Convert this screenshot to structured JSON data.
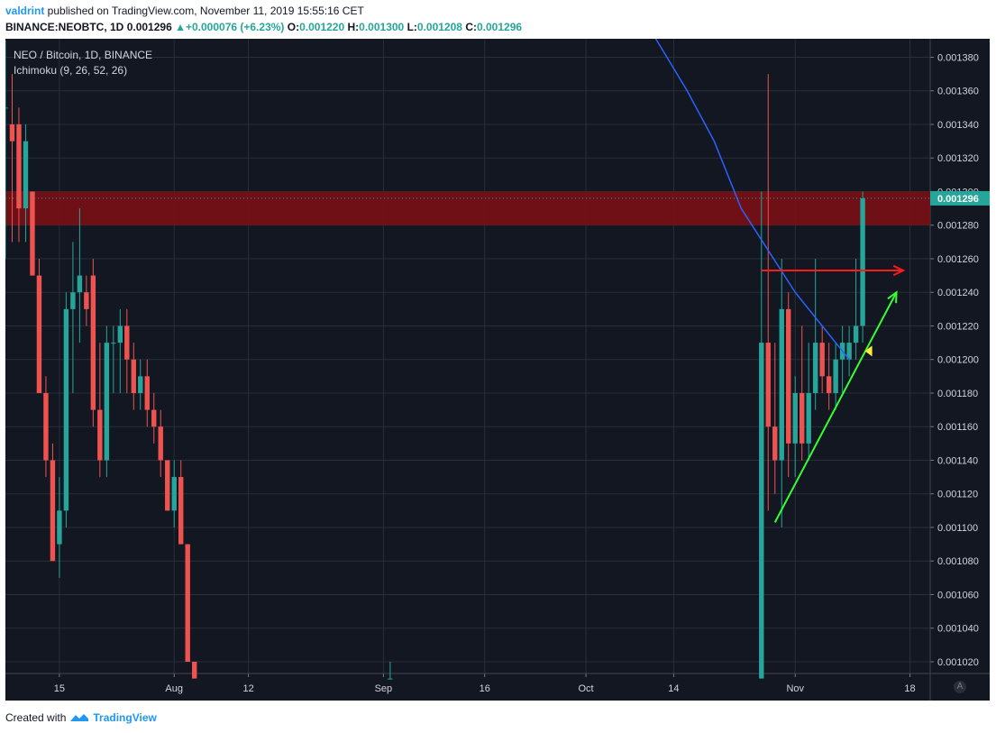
{
  "header": {
    "author": "valdrint",
    "published_text": " published on TradingView.com, November 11, 2019 15:55:16 CET",
    "symbol": "BINANCE:NEOBTC, 1D",
    "price": "0.001296",
    "change": "+0.000076 (+6.23%)",
    "o_label": "O:",
    "o_value": "0.001220",
    "h_label": "H:",
    "h_value": "0.001300",
    "l_label": "L:",
    "l_value": "0.001208",
    "c_label": "C:",
    "c_value": "0.001296"
  },
  "legend": {
    "title": "NEO / Bitcoin, 1D, BINANCE",
    "indicator": "Ichimoku (9, 26, 52, 26)"
  },
  "footer": {
    "created_with": "Created with",
    "brand": "TradingView"
  },
  "auto_button": "A",
  "colors": {
    "background": "#131722",
    "grid": "#2a2e39",
    "up": "#26a69a",
    "down": "#ef5350",
    "resistance_zone": "#7a1015",
    "ma_line": "#2962ff",
    "arrow_red": "#ff1a1a",
    "arrow_green": "#33ff33",
    "marker_yellow": "#ffeb3b",
    "price_label": "#26a69a"
  },
  "chart_data": {
    "type": "candlestick",
    "title": "NEO / Bitcoin, 1D, BINANCE",
    "y_ticks": [
      "0.001380",
      "0.001360",
      "0.001340",
      "0.001320",
      "0.001300",
      "0.001280",
      "0.001260",
      "0.001240",
      "0.001220",
      "0.001200",
      "0.001180",
      "0.001160",
      "0.001140",
      "0.001120",
      "0.001100",
      "0.001080",
      "0.001060",
      "0.001040",
      "0.001020"
    ],
    "y_tick_values": [
      0.00138,
      0.00136,
      0.00134,
      0.00132,
      0.0013,
      0.00128,
      0.00126,
      0.00124,
      0.00122,
      0.0012,
      0.00118,
      0.00116,
      0.00114,
      0.00112,
      0.0011,
      0.00108,
      0.00106,
      0.00104,
      0.00102
    ],
    "ylim": [
      0.001013,
      0.001391
    ],
    "x_ticks": [
      {
        "label": "15",
        "date": "2019-07-15"
      },
      {
        "label": "Aug",
        "date": "2019-08-01"
      },
      {
        "label": "12",
        "date": "2019-08-12"
      },
      {
        "label": "Sep",
        "date": "2019-09-01"
      },
      {
        "label": "16",
        "date": "2019-09-16"
      },
      {
        "label": "Oct",
        "date": "2019-10-01"
      },
      {
        "label": "14",
        "date": "2019-10-14"
      },
      {
        "label": "Nov",
        "date": "2019-11-01"
      },
      {
        "label": "18",
        "date": "2019-11-18"
      }
    ],
    "xlim": [
      "2019-07-07",
      "2019-11-21"
    ],
    "last_price_label": "0.001296",
    "resistance_zone": [
      0.00128,
      0.0013
    ],
    "candles": [
      {
        "d": "2019-07-07",
        "o": 0.00135,
        "h": 0.00139,
        "l": 0.00126,
        "c": 0.00135
      },
      {
        "d": "2019-07-08",
        "o": 0.00134,
        "h": 0.00137,
        "l": 0.00127,
        "c": 0.00133
      },
      {
        "d": "2019-07-09",
        "o": 0.00134,
        "h": 0.00135,
        "l": 0.00127,
        "c": 0.00129
      },
      {
        "d": "2019-07-10",
        "o": 0.00129,
        "h": 0.00134,
        "l": 0.00127,
        "c": 0.00133
      },
      {
        "d": "2019-07-11",
        "o": 0.0013,
        "h": 0.0013,
        "l": 0.00125,
        "c": 0.00125
      },
      {
        "d": "2019-07-12",
        "o": 0.00125,
        "h": 0.00126,
        "l": 0.00118,
        "c": 0.00118
      },
      {
        "d": "2019-07-13",
        "o": 0.00118,
        "h": 0.00119,
        "l": 0.00113,
        "c": 0.00114
      },
      {
        "d": "2019-07-14",
        "o": 0.00114,
        "h": 0.00115,
        "l": 0.00108,
        "c": 0.00108
      },
      {
        "d": "2019-07-15",
        "o": 0.00109,
        "h": 0.00113,
        "l": 0.00107,
        "c": 0.00111
      },
      {
        "d": "2019-07-16",
        "o": 0.00111,
        "h": 0.00124,
        "l": 0.0011,
        "c": 0.00123
      },
      {
        "d": "2019-07-17",
        "o": 0.00123,
        "h": 0.00127,
        "l": 0.00118,
        "c": 0.00124
      },
      {
        "d": "2019-07-18",
        "o": 0.00124,
        "h": 0.00129,
        "l": 0.00121,
        "c": 0.00125
      },
      {
        "d": "2019-07-19",
        "o": 0.00124,
        "h": 0.00125,
        "l": 0.00122,
        "c": 0.00123
      },
      {
        "d": "2019-07-20",
        "o": 0.00125,
        "h": 0.00126,
        "l": 0.00116,
        "c": 0.00117
      },
      {
        "d": "2019-07-21",
        "o": 0.00117,
        "h": 0.00121,
        "l": 0.00113,
        "c": 0.00114
      },
      {
        "d": "2019-07-22",
        "o": 0.00114,
        "h": 0.00122,
        "l": 0.00113,
        "c": 0.00121
      },
      {
        "d": "2019-07-23",
        "o": 0.00121,
        "h": 0.00122,
        "l": 0.00118,
        "c": 0.00121
      },
      {
        "d": "2019-07-24",
        "o": 0.00121,
        "h": 0.00123,
        "l": 0.00118,
        "c": 0.00122
      },
      {
        "d": "2019-07-25",
        "o": 0.00122,
        "h": 0.00123,
        "l": 0.00118,
        "c": 0.0012
      },
      {
        "d": "2019-07-26",
        "o": 0.0012,
        "h": 0.00121,
        "l": 0.00117,
        "c": 0.00118
      },
      {
        "d": "2019-07-27",
        "o": 0.00118,
        "h": 0.0012,
        "l": 0.00117,
        "c": 0.00119
      },
      {
        "d": "2019-07-28",
        "o": 0.00119,
        "h": 0.0012,
        "l": 0.00116,
        "c": 0.00117
      },
      {
        "d": "2019-07-29",
        "o": 0.00117,
        "h": 0.00118,
        "l": 0.00115,
        "c": 0.00116
      },
      {
        "d": "2019-07-30",
        "o": 0.00116,
        "h": 0.00117,
        "l": 0.00113,
        "c": 0.00114
      },
      {
        "d": "2019-07-31",
        "o": 0.00114,
        "h": 0.00114,
        "l": 0.00111,
        "c": 0.00111
      },
      {
        "d": "2019-08-01",
        "o": 0.00111,
        "h": 0.00114,
        "l": 0.0011,
        "c": 0.00113
      },
      {
        "d": "2019-08-02",
        "o": 0.00113,
        "h": 0.00114,
        "l": 0.00109,
        "c": 0.00109
      },
      {
        "d": "2019-08-03",
        "o": 0.00109,
        "h": 0.00109,
        "l": 0.00102,
        "c": 0.00102
      },
      {
        "d": "2019-08-04",
        "o": 0.00102,
        "h": 0.00102,
        "l": 0.00101,
        "c": 0.00101
      },
      {
        "d": "2019-09-02",
        "o": 0.00101,
        "h": 0.00102,
        "l": 0.00101,
        "c": 0.00101
      },
      {
        "d": "2019-10-27",
        "o": 0.00101,
        "h": 0.0013,
        "l": 0.00101,
        "c": 0.00121
      },
      {
        "d": "2019-10-28",
        "o": 0.00121,
        "h": 0.00137,
        "l": 0.00111,
        "c": 0.00116
      },
      {
        "d": "2019-10-29",
        "o": 0.00116,
        "h": 0.00121,
        "l": 0.00112,
        "c": 0.00114
      },
      {
        "d": "2019-10-30",
        "o": 0.00114,
        "h": 0.00126,
        "l": 0.0011,
        "c": 0.00123
      },
      {
        "d": "2019-10-31",
        "o": 0.00123,
        "h": 0.00124,
        "l": 0.00113,
        "c": 0.00115
      },
      {
        "d": "2019-11-01",
        "o": 0.00115,
        "h": 0.00119,
        "l": 0.00113,
        "c": 0.00118
      },
      {
        "d": "2019-11-02",
        "o": 0.00118,
        "h": 0.00122,
        "l": 0.00114,
        "c": 0.00115
      },
      {
        "d": "2019-11-03",
        "o": 0.00115,
        "h": 0.00121,
        "l": 0.00114,
        "c": 0.00118
      },
      {
        "d": "2019-11-04",
        "o": 0.00118,
        "h": 0.00126,
        "l": 0.00117,
        "c": 0.00121
      },
      {
        "d": "2019-11-05",
        "o": 0.00121,
        "h": 0.00122,
        "l": 0.00118,
        "c": 0.00119
      },
      {
        "d": "2019-11-06",
        "o": 0.00119,
        "h": 0.00121,
        "l": 0.00117,
        "c": 0.00118
      },
      {
        "d": "2019-11-07",
        "o": 0.00118,
        "h": 0.00121,
        "l": 0.00117,
        "c": 0.0012
      },
      {
        "d": "2019-11-08",
        "o": 0.0012,
        "h": 0.00122,
        "l": 0.00118,
        "c": 0.00121
      },
      {
        "d": "2019-11-09",
        "o": 0.0012,
        "h": 0.00122,
        "l": 0.00119,
        "c": 0.00121
      },
      {
        "d": "2019-11-10",
        "o": 0.00121,
        "h": 0.00126,
        "l": 0.0012,
        "c": 0.00122
      },
      {
        "d": "2019-11-11",
        "o": 0.00122,
        "h": 0.0013,
        "l": 0.00121,
        "c": 0.001296
      }
    ],
    "ma_line": [
      {
        "d": "2019-10-10",
        "v": 0.0014
      },
      {
        "d": "2019-10-16",
        "v": 0.00136
      },
      {
        "d": "2019-10-20",
        "v": 0.00133
      },
      {
        "d": "2019-10-24",
        "v": 0.00129
      },
      {
        "d": "2019-10-28",
        "v": 0.001265
      },
      {
        "d": "2019-11-01",
        "v": 0.00124
      },
      {
        "d": "2019-11-05",
        "v": 0.00122
      },
      {
        "d": "2019-11-09",
        "v": 0.0012
      }
    ],
    "annotations": [
      {
        "type": "arrow",
        "color": "red",
        "from": {
          "d": "2019-10-27",
          "v": 0.001253
        },
        "to": {
          "d": "2019-11-17",
          "v": 0.001253
        }
      },
      {
        "type": "arrow",
        "color": "green",
        "from": {
          "d": "2019-10-29",
          "v": 0.001103
        },
        "to": {
          "d": "2019-11-16",
          "v": 0.00124
        }
      },
      {
        "type": "marker",
        "color": "yellow",
        "at": {
          "d": "2019-11-12",
          "v": 0.001205
        }
      }
    ]
  }
}
